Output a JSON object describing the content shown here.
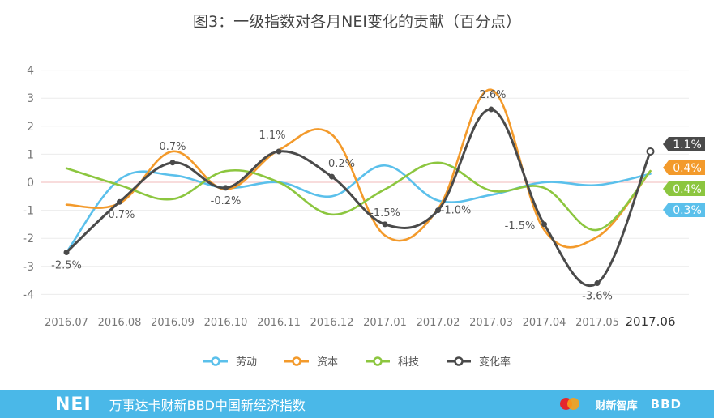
{
  "title": "图3：一级指数对各月NEI变化的贡献（百分点）",
  "chart_data": {
    "type": "line",
    "title": "图3：一级指数对各月NEI变化的贡献（百分点）",
    "categories": [
      "2016.07",
      "2016.08",
      "2016.09",
      "2016.10",
      "2016.11",
      "2016.12",
      "2017.01",
      "2017.02",
      "2017.03",
      "2017.04",
      "2017.05",
      "2017.06"
    ],
    "y_ticks": [
      "4",
      "3",
      "2",
      "1",
      "0",
      "-1",
      "-2",
      "-3",
      "-4"
    ],
    "ylim": [
      -4,
      4
    ],
    "grid": true,
    "legend_position": "bottom",
    "series": [
      {
        "name": "劳动",
        "color": "#5bc0eb",
        "values": [
          -2.5,
          0.1,
          0.25,
          -0.2,
          0.0,
          -0.5,
          0.6,
          -0.65,
          -0.45,
          0.0,
          -0.1,
          0.3
        ]
      },
      {
        "name": "资本",
        "color": "#f39a2b",
        "values": [
          -0.8,
          -0.75,
          1.1,
          -0.25,
          1.15,
          1.7,
          -1.9,
          -0.95,
          3.3,
          -1.7,
          -1.95,
          0.4
        ]
      },
      {
        "name": "科技",
        "color": "#8cc63f",
        "values": [
          0.5,
          -0.1,
          -0.6,
          0.4,
          0.0,
          -1.15,
          -0.25,
          0.7,
          -0.3,
          -0.2,
          -1.7,
          0.4
        ]
      },
      {
        "name": "变化率",
        "color": "#4a4a4a",
        "values": [
          -2.5,
          -0.7,
          0.7,
          -0.2,
          1.1,
          0.2,
          -1.5,
          -1.0,
          2.6,
          -1.5,
          -3.6,
          1.1
        ]
      }
    ],
    "data_labels": [
      "-2.5%",
      "-0.7%",
      "0.7%",
      "-0.2%",
      "1.1%",
      "0.2%",
      "-1.5%",
      "-1.0%",
      "2.6%",
      "-1.5%",
      "-3.6%",
      "1.1%"
    ],
    "end_badges": [
      {
        "text": "1.1%",
        "color": "#4a4a4a"
      },
      {
        "text": "0.4%",
        "color": "#f39a2b"
      },
      {
        "text": "0.4%",
        "color": "#8cc63f"
      },
      {
        "text": "0.3%",
        "color": "#5bc0eb"
      }
    ]
  },
  "footer": {
    "logo": "NEI",
    "text": "万事达卡财新BBD中国新经济指数",
    "caixin": "财新智库",
    "bbd": "BBD"
  }
}
